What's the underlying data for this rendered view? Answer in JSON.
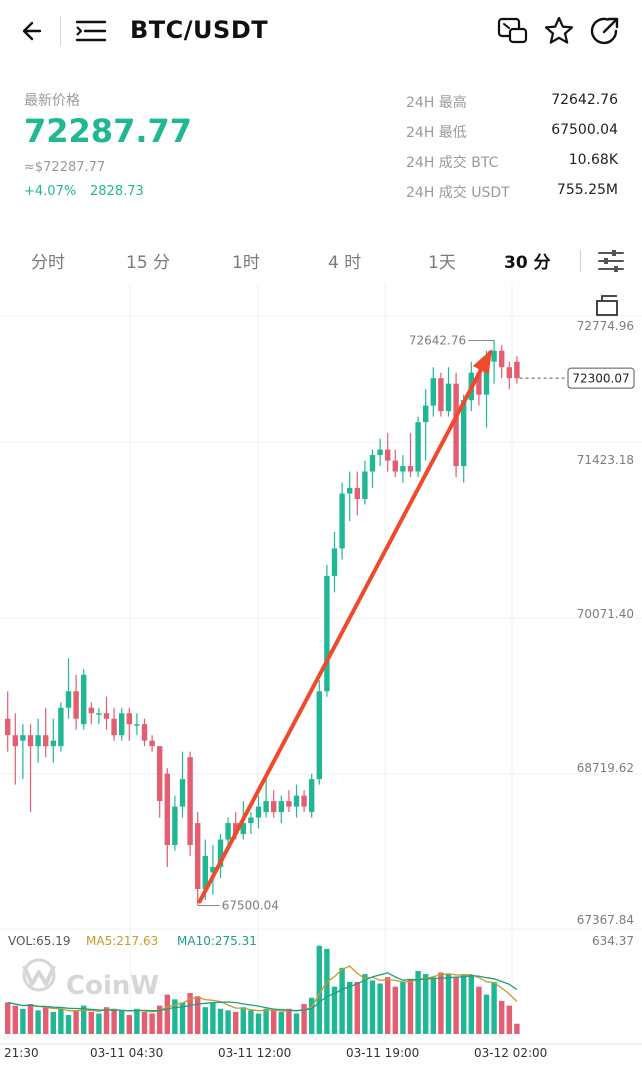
{
  "header": {
    "pair": "BTC/USDT",
    "icons": [
      "back-arrow-icon",
      "menu-indent-icon",
      "screenshot-share-icon",
      "star-icon",
      "share-arrow-icon"
    ]
  },
  "summary": {
    "price_label": "最新价格",
    "last_price": "72287.77",
    "fiat_price": "≈$72287.77",
    "change_pct": "+4.07%",
    "change_abs": "2828.73",
    "up_color": "#20b894",
    "down_color": "#e35e71"
  },
  "stats": [
    {
      "label": "24H 最高",
      "value": "72642.76"
    },
    {
      "label": "24H 最低",
      "value": "67500.04"
    },
    {
      "label": "24H 成交  BTC",
      "value": "10.68K"
    },
    {
      "label": "24H 成交  USDT",
      "value": "755.25M"
    }
  ],
  "tabs": [
    {
      "label": "分时",
      "active": false
    },
    {
      "label": "15 分",
      "active": false
    },
    {
      "label": "1时",
      "active": false
    },
    {
      "label": "4 时",
      "active": false
    },
    {
      "label": "1天",
      "active": false
    },
    {
      "label": "30 分",
      "active": true
    }
  ],
  "chart_data": {
    "type": "candlestick",
    "price_axis": [
      "72774.96",
      "71423.18",
      "70071.40",
      "68719.62",
      "67367.84"
    ],
    "ylim": [
      67367.84,
      72774.96
    ],
    "current_price_tag": "72300.07",
    "high_marker": "72642.76",
    "low_marker": "67500.04",
    "time_axis": [
      "21:30",
      "03-11 04:30",
      "03-11 12:00",
      "03-11 19:00",
      "03-12 02:00"
    ],
    "candles": [
      {
        "o": 69200,
        "h": 69450,
        "l": 68900,
        "c": 69050
      },
      {
        "o": 69050,
        "h": 69250,
        "l": 68600,
        "c": 68950
      },
      {
        "o": 69000,
        "h": 69150,
        "l": 68650,
        "c": 69050
      },
      {
        "o": 69050,
        "h": 69150,
        "l": 68350,
        "c": 68950
      },
      {
        "o": 68950,
        "h": 69200,
        "l": 68800,
        "c": 69050
      },
      {
        "o": 69050,
        "h": 69300,
        "l": 68850,
        "c": 68950
      },
      {
        "o": 68950,
        "h": 69200,
        "l": 68800,
        "c": 69000
      },
      {
        "o": 68950,
        "h": 69350,
        "l": 68900,
        "c": 69300
      },
      {
        "o": 69300,
        "h": 69750,
        "l": 69200,
        "c": 69450
      },
      {
        "o": 69450,
        "h": 69600,
        "l": 69100,
        "c": 69200
      },
      {
        "o": 69150,
        "h": 69650,
        "l": 69100,
        "c": 69600
      },
      {
        "o": 69300,
        "h": 69350,
        "l": 69150,
        "c": 69250
      },
      {
        "o": 69250,
        "h": 69300,
        "l": 69150,
        "c": 69250
      },
      {
        "o": 69250,
        "h": 69400,
        "l": 69100,
        "c": 69200
      },
      {
        "o": 69200,
        "h": 69300,
        "l": 69000,
        "c": 69050
      },
      {
        "o": 69050,
        "h": 69300,
        "l": 69000,
        "c": 69250
      },
      {
        "o": 69250,
        "h": 69300,
        "l": 69000,
        "c": 69150
      },
      {
        "o": 69150,
        "h": 69250,
        "l": 69050,
        "c": 69150
      },
      {
        "o": 69150,
        "h": 69200,
        "l": 68950,
        "c": 69000
      },
      {
        "o": 69000,
        "h": 69050,
        "l": 68900,
        "c": 68950
      },
      {
        "o": 68950,
        "h": 68950,
        "l": 68300,
        "c": 68450
      },
      {
        "o": 68700,
        "h": 68750,
        "l": 67850,
        "c": 68050
      },
      {
        "o": 68050,
        "h": 68500,
        "l": 68000,
        "c": 68400
      },
      {
        "o": 68400,
        "h": 68900,
        "l": 68300,
        "c": 68650
      },
      {
        "o": 68850,
        "h": 68900,
        "l": 67950,
        "c": 68050
      },
      {
        "o": 68250,
        "h": 68350,
        "l": 67500,
        "c": 67650
      },
      {
        "o": 67650,
        "h": 68100,
        "l": 67550,
        "c": 67950
      },
      {
        "o": 67800,
        "h": 68050,
        "l": 67600,
        "c": 67850
      },
      {
        "o": 67850,
        "h": 68150,
        "l": 67750,
        "c": 68100
      },
      {
        "o": 68100,
        "h": 68300,
        "l": 68000,
        "c": 68250
      },
      {
        "o": 68250,
        "h": 68350,
        "l": 68100,
        "c": 68150
      },
      {
        "o": 68150,
        "h": 68450,
        "l": 68100,
        "c": 68250
      },
      {
        "o": 68250,
        "h": 68350,
        "l": 68150,
        "c": 68300
      },
      {
        "o": 68300,
        "h": 68500,
        "l": 68200,
        "c": 68400
      },
      {
        "o": 68350,
        "h": 68700,
        "l": 68300,
        "c": 68450
      },
      {
        "o": 68450,
        "h": 68550,
        "l": 68300,
        "c": 68350
      },
      {
        "o": 68350,
        "h": 68500,
        "l": 68250,
        "c": 68450
      },
      {
        "o": 68450,
        "h": 68550,
        "l": 68350,
        "c": 68400
      },
      {
        "o": 68400,
        "h": 68600,
        "l": 68300,
        "c": 68500
      },
      {
        "o": 68500,
        "h": 68550,
        "l": 68350,
        "c": 68400
      },
      {
        "o": 68350,
        "h": 68700,
        "l": 68300,
        "c": 68650
      },
      {
        "o": 68650,
        "h": 69550,
        "l": 68600,
        "c": 69450
      },
      {
        "o": 69450,
        "h": 70600,
        "l": 69400,
        "c": 70500
      },
      {
        "o": 70500,
        "h": 70900,
        "l": 70350,
        "c": 70750
      },
      {
        "o": 70750,
        "h": 71350,
        "l": 70650,
        "c": 71250
      },
      {
        "o": 71250,
        "h": 71450,
        "l": 71000,
        "c": 71300
      },
      {
        "o": 71300,
        "h": 71450,
        "l": 71050,
        "c": 71200
      },
      {
        "o": 71200,
        "h": 71550,
        "l": 71150,
        "c": 71450
      },
      {
        "o": 71450,
        "h": 71650,
        "l": 71300,
        "c": 71600
      },
      {
        "o": 71600,
        "h": 71750,
        "l": 71500,
        "c": 71650
      },
      {
        "o": 71650,
        "h": 71800,
        "l": 71450,
        "c": 71550
      },
      {
        "o": 71550,
        "h": 71650,
        "l": 71400,
        "c": 71450
      },
      {
        "o": 71450,
        "h": 71600,
        "l": 71350,
        "c": 71500
      },
      {
        "o": 71500,
        "h": 71800,
        "l": 71400,
        "c": 71450
      },
      {
        "o": 71450,
        "h": 71950,
        "l": 71400,
        "c": 71900
      },
      {
        "o": 71900,
        "h": 72200,
        "l": 71550,
        "c": 72050
      },
      {
        "o": 72050,
        "h": 72400,
        "l": 71950,
        "c": 72300
      },
      {
        "o": 72300,
        "h": 72350,
        "l": 71950,
        "c": 72000
      },
      {
        "o": 72000,
        "h": 72400,
        "l": 71950,
        "c": 72250
      },
      {
        "o": 72250,
        "h": 72350,
        "l": 71400,
        "c": 71500
      },
      {
        "o": 71500,
        "h": 72150,
        "l": 71350,
        "c": 72100
      },
      {
        "o": 72100,
        "h": 72450,
        "l": 72000,
        "c": 72350
      },
      {
        "o": 72350,
        "h": 72400,
        "l": 72050,
        "c": 72150
      },
      {
        "o": 72150,
        "h": 72550,
        "l": 71850,
        "c": 72450
      },
      {
        "o": 72450,
        "h": 72650,
        "l": 72250,
        "c": 72550
      },
      {
        "o": 72550,
        "h": 72600,
        "l": 72300,
        "c": 72400
      },
      {
        "o": 72400,
        "h": 72450,
        "l": 72200,
        "c": 72300
      },
      {
        "o": 72450,
        "h": 72500,
        "l": 72250,
        "c": 72300
      }
    ],
    "volume": {
      "vol_label": "VOL:65.19",
      "ma5_label": "MA5:217.63",
      "ma10_label": "MA10:275.31",
      "max_label": "634.37",
      "max_value": 634.37,
      "ma5_color": "#c99a2e",
      "ma10_color": "#1f9e84",
      "values": [
        200,
        180,
        160,
        190,
        150,
        170,
        140,
        160,
        120,
        150,
        180,
        140,
        130,
        170,
        160,
        150,
        120,
        160,
        140,
        130,
        180,
        250,
        220,
        200,
        260,
        240,
        170,
        200,
        160,
        150,
        140,
        170,
        150,
        130,
        160,
        150,
        140,
        160,
        130,
        190,
        230,
        560,
        540,
        300,
        420,
        330,
        330,
        380,
        340,
        320,
        360,
        300,
        330,
        350,
        400,
        380,
        360,
        390,
        380,
        360,
        380,
        370,
        300,
        250,
        330,
        210,
        180,
        65
      ]
    }
  },
  "watermark": "CoinW"
}
